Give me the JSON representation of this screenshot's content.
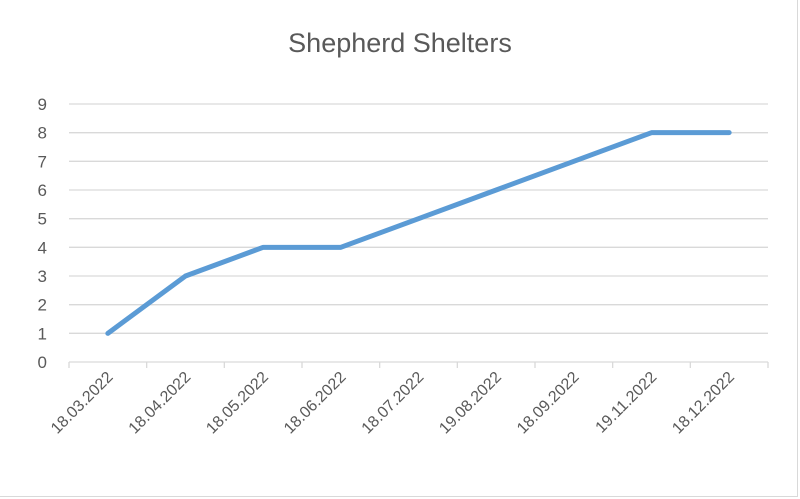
{
  "chart_data": {
    "type": "line",
    "title": "Shepherd Shelters",
    "xlabel": "",
    "ylabel": "",
    "categories": [
      "18.03.2022",
      "18.04.2022",
      "18.05.2022",
      "18.06.2022",
      "18.07.2022",
      "19.08.2022",
      "18.09.2022",
      "19.11.2022",
      "18.12.2022"
    ],
    "series": [
      {
        "name": "Shepherd Shelters",
        "values": [
          1,
          3,
          4,
          4,
          5,
          6,
          7,
          8,
          8
        ],
        "color": "#5b9bd5"
      }
    ],
    "ylim": [
      0,
      9
    ],
    "yticks": [
      0,
      1,
      2,
      3,
      4,
      5,
      6,
      7,
      8,
      9
    ],
    "grid": true,
    "legend": "none"
  },
  "colors": {
    "line": "#5b9bd5",
    "grid": "#d9d9d9",
    "text": "#595959"
  }
}
